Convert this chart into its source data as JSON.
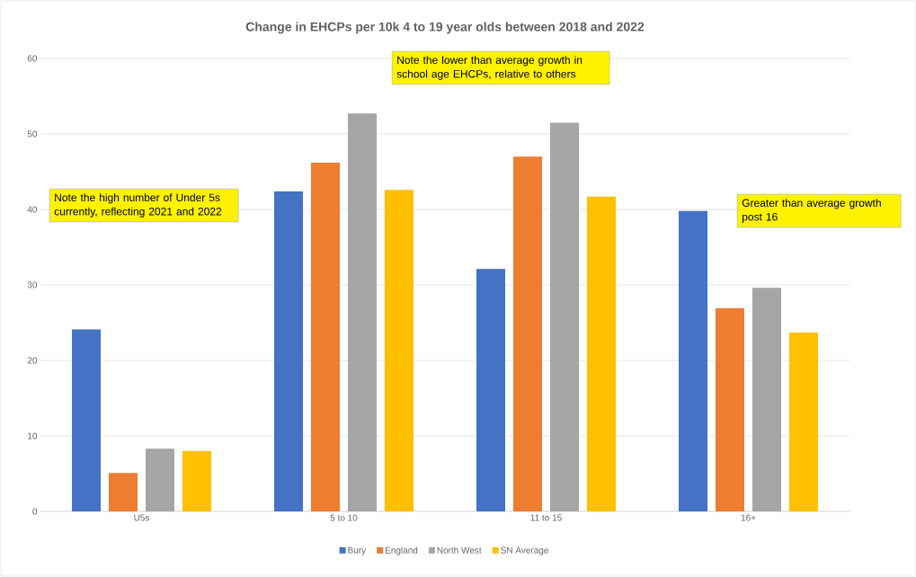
{
  "chart_data": {
    "type": "bar",
    "title": "Change in EHCPs per 10k 4 to 19 year olds between 2018 and 2022",
    "categories": [
      "U5s",
      "5 to 10",
      "11 to 15",
      "16+"
    ],
    "series": [
      {
        "name": "Bury",
        "color": "#4472c4",
        "values": [
          24.1,
          42.4,
          32.1,
          39.8
        ]
      },
      {
        "name": "England",
        "color": "#ed7d31",
        "values": [
          5.1,
          46.2,
          47.0,
          26.9
        ]
      },
      {
        "name": "North West",
        "color": "#a5a5a5",
        "values": [
          8.3,
          52.7,
          51.5,
          29.6
        ]
      },
      {
        "name": "SN Average",
        "color": "#ffc000",
        "values": [
          8.0,
          42.6,
          41.7,
          23.7
        ]
      }
    ],
    "ylim": [
      0,
      60
    ],
    "yticks": [
      0,
      10,
      20,
      30,
      40,
      50,
      60
    ],
    "grid": "y",
    "legend": "bottom",
    "annotations": [
      "Note the high number of Under 5s currently, reflecting 2021 and 2022",
      "Note the lower than average growth in school age EHCPs, relative to others",
      "Greater than average growth post 16"
    ]
  }
}
